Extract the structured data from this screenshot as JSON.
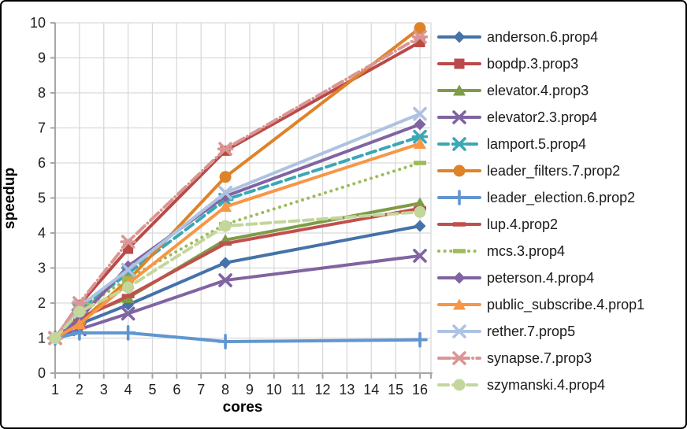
{
  "chart_data": {
    "type": "line",
    "title": "",
    "xlabel": "cores",
    "ylabel": "speedup",
    "x": [
      1,
      2,
      4,
      8,
      16
    ],
    "xticks": [
      1,
      2,
      3,
      4,
      5,
      6,
      7,
      8,
      9,
      10,
      11,
      12,
      13,
      14,
      15,
      16
    ],
    "yticks": [
      0,
      1,
      2,
      3,
      4,
      5,
      6,
      7,
      8,
      9,
      10
    ],
    "xlim": [
      1,
      16
    ],
    "ylim": [
      0,
      10
    ],
    "grid": true,
    "legend_position": "right",
    "axis_color": "#A6A6A6",
    "grid_color": "#D9D9D9",
    "series": [
      {
        "name": "anderson.6.prop4",
        "color": "#4572A8",
        "marker": "diamond",
        "dash": "solid",
        "values": [
          1.0,
          1.4,
          1.95,
          3.15,
          4.2
        ]
      },
      {
        "name": "bopdp.3.prop3",
        "color": "#B94A48",
        "marker": "square",
        "dash": "solid",
        "values": [
          1.0,
          1.95,
          3.55,
          6.35,
          9.45
        ]
      },
      {
        "name": "elevator.4.prop3",
        "color": "#7E9B48",
        "marker": "triangle",
        "dash": "solid",
        "values": [
          1.0,
          1.6,
          2.15,
          3.8,
          4.85
        ]
      },
      {
        "name": "elevator2.3.prop4",
        "color": "#8064A2",
        "marker": "x",
        "dash": "solid",
        "values": [
          1.0,
          1.25,
          1.7,
          2.65,
          3.35
        ]
      },
      {
        "name": "lamport.5.prop4",
        "color": "#3AA7B5",
        "marker": "star",
        "dash": "dashed",
        "values": [
          1.0,
          1.8,
          2.85,
          4.95,
          6.75
        ]
      },
      {
        "name": "leader_filters.7.prop2",
        "color": "#DE8327",
        "marker": "circle",
        "dash": "solid",
        "values": [
          1.0,
          1.45,
          2.65,
          5.6,
          9.85
        ]
      },
      {
        "name": "leader_election.6.prop2",
        "color": "#6096D0",
        "marker": "plus",
        "dash": "solid",
        "values": [
          1.0,
          1.15,
          1.15,
          0.9,
          0.95
        ]
      },
      {
        "name": "lup.4.prop2",
        "color": "#C0504D",
        "marker": "dash",
        "dash": "solid",
        "values": [
          1.0,
          1.55,
          2.2,
          3.7,
          4.7
        ]
      },
      {
        "name": "mcs.3.prop4",
        "color": "#9CBB59",
        "marker": "dash",
        "dash": "dotted",
        "values": [
          1.0,
          1.8,
          2.7,
          4.25,
          6.0
        ]
      },
      {
        "name": "peterson.4.prop4",
        "color": "#8064A2",
        "marker": "diamond",
        "dash": "solid",
        "values": [
          1.0,
          1.55,
          3.05,
          5.05,
          7.1
        ]
      },
      {
        "name": "public_subscribe.4.prop1",
        "color": "#F79646",
        "marker": "triangle",
        "dash": "solid",
        "values": [
          1.0,
          1.4,
          2.55,
          4.75,
          6.55
        ]
      },
      {
        "name": "rether.7.prop5",
        "color": "#AEC2E1",
        "marker": "x",
        "dash": "solid",
        "values": [
          1.0,
          1.9,
          2.95,
          5.15,
          7.4
        ]
      },
      {
        "name": "synapse.7.prop3",
        "color": "#DA9694",
        "marker": "star",
        "dash": "dashdot",
        "values": [
          1.0,
          2.0,
          3.75,
          6.4,
          9.6
        ]
      },
      {
        "name": "szymanski.4.prop4",
        "color": "#C3D69B",
        "marker": "circle",
        "dash": "dashed",
        "values": [
          1.0,
          1.75,
          2.45,
          4.2,
          4.6
        ]
      }
    ]
  }
}
